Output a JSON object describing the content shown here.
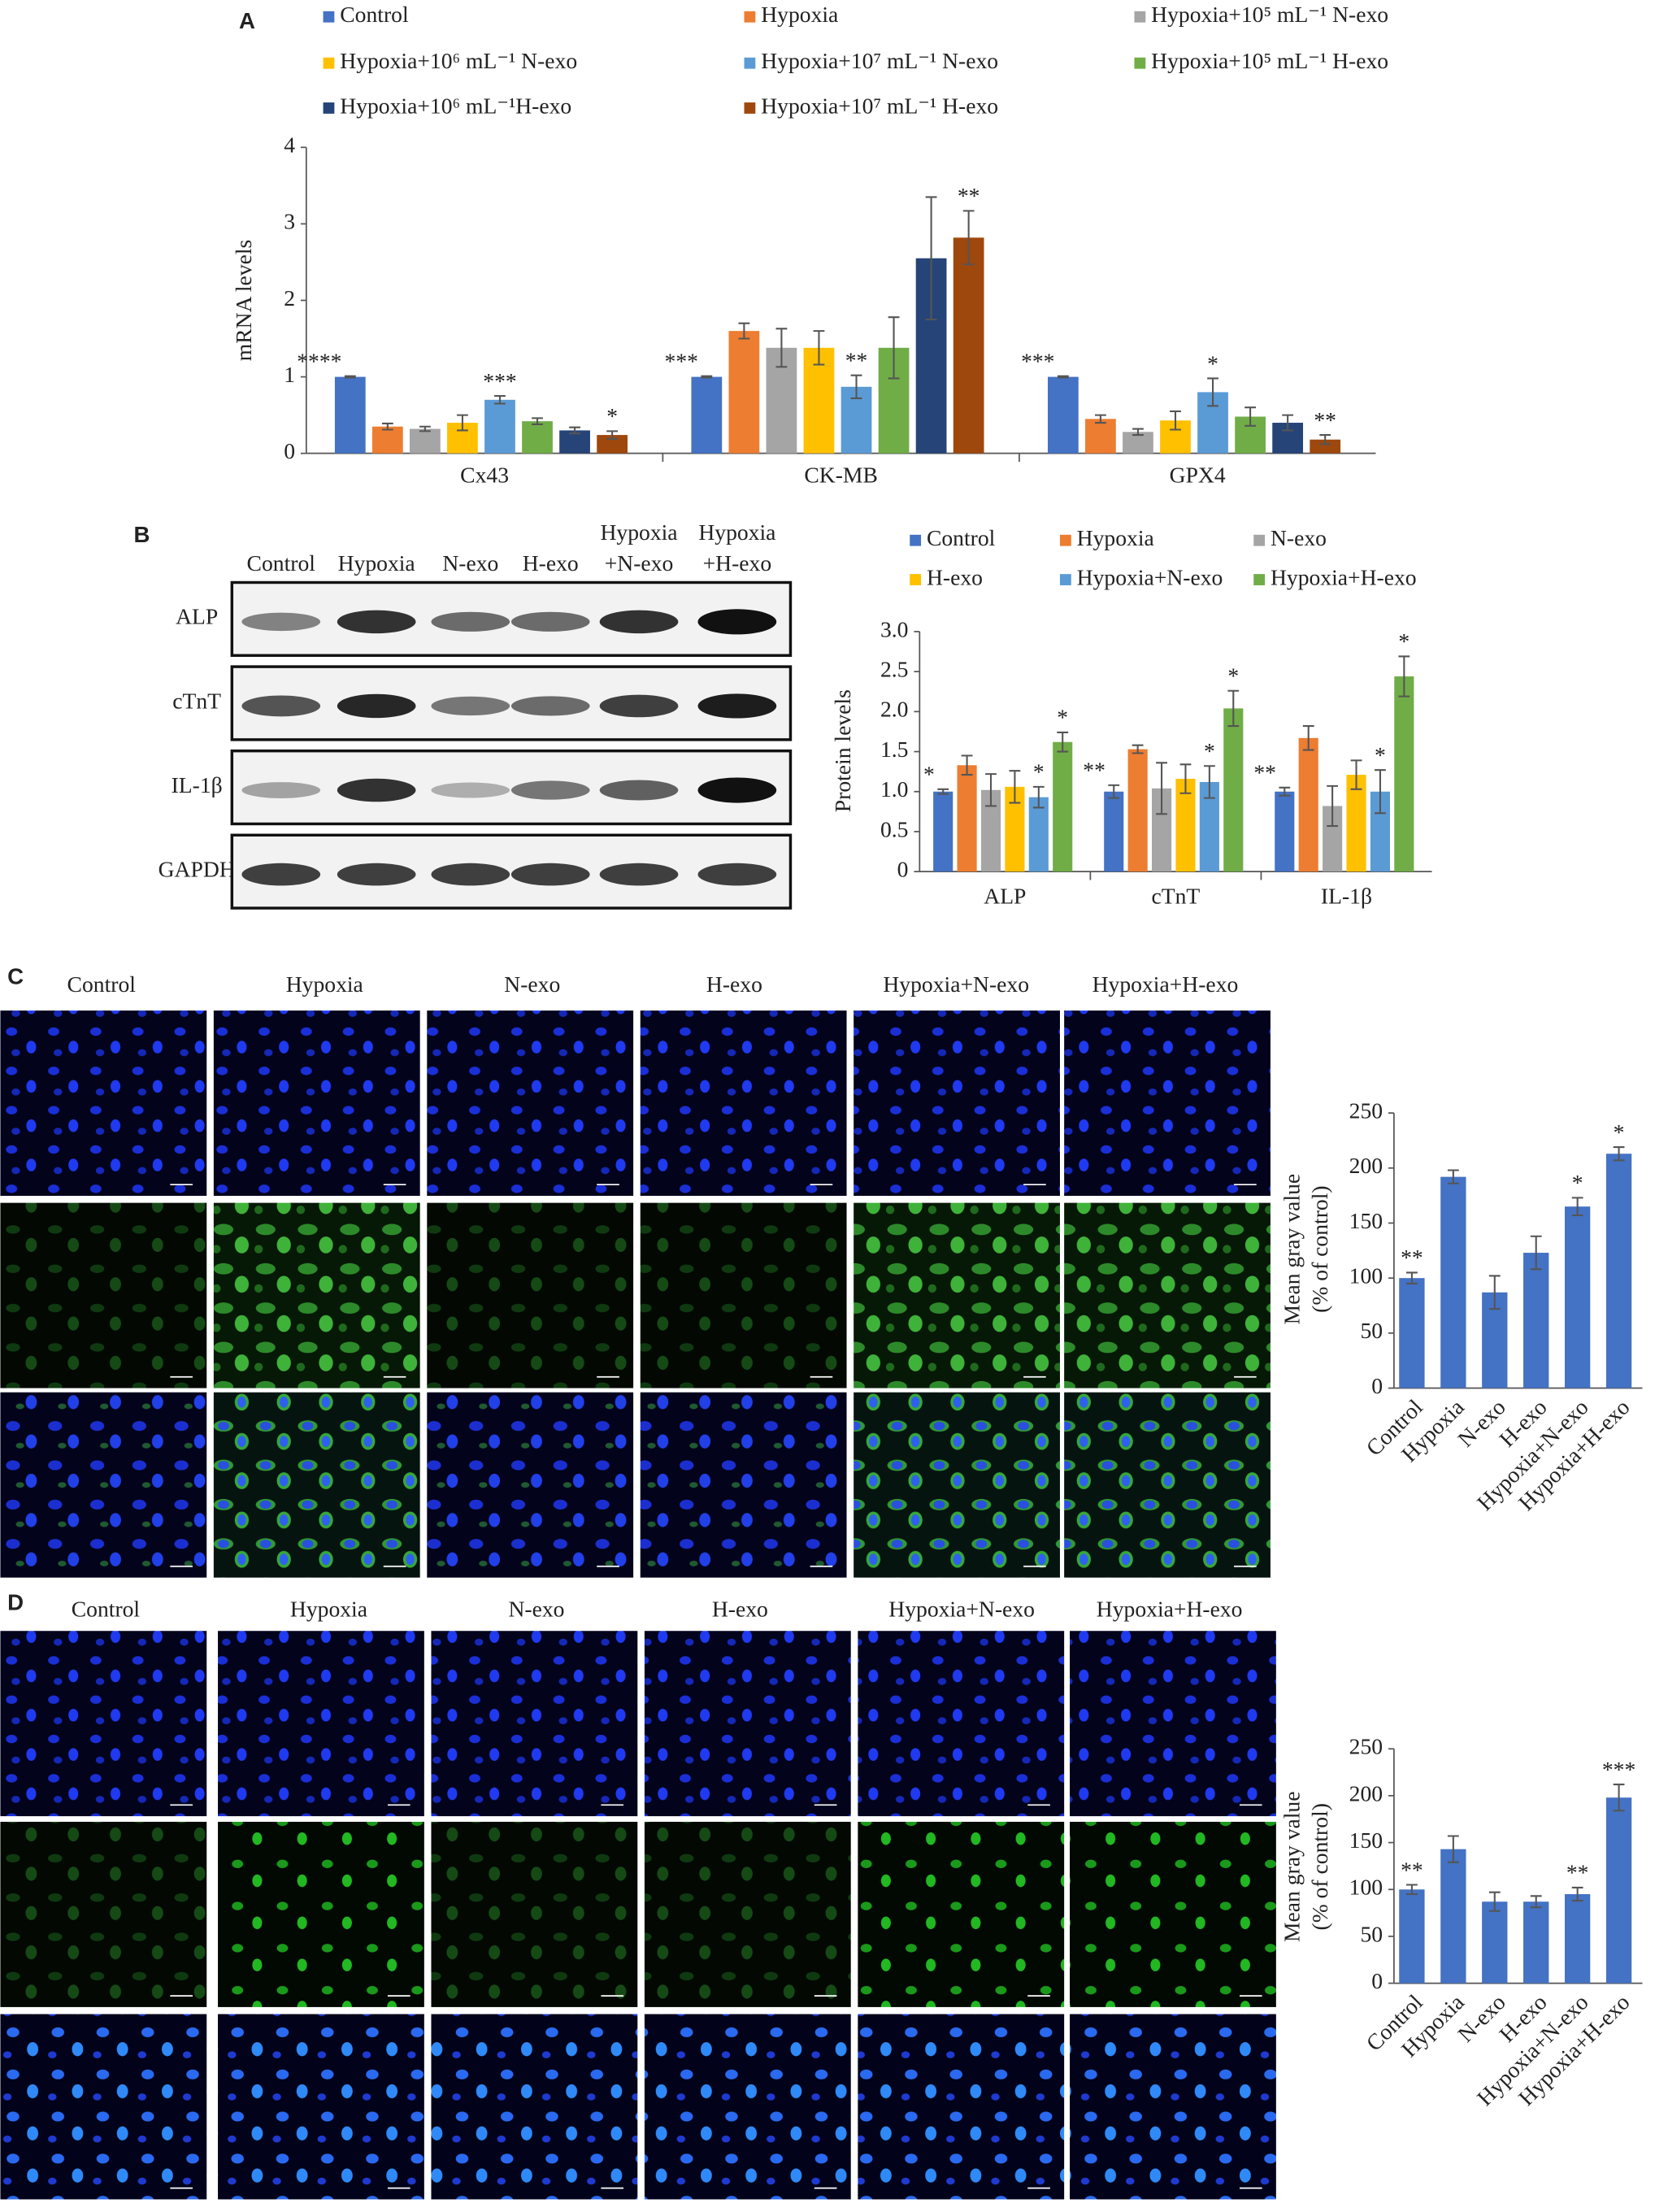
{
  "panel_labels": [
    "A",
    "B",
    "C",
    "D"
  ],
  "blot": {
    "columns": [
      "Control",
      "Hypoxia",
      "N-exo",
      "H-exo",
      [
        "Hypoxia",
        "+N-exo"
      ],
      [
        "Hypoxia",
        "+H-exo"
      ]
    ],
    "rows": [
      "ALP",
      "cTnT",
      "IL-1β",
      "GAPDH"
    ]
  },
  "microscopy": [
    {
      "columns": [
        "Control",
        "Hypoxia",
        "N-exo",
        "H-exo",
        "Hypoxia+N-exo",
        "Hypoxia+H-exo"
      ]
    },
    {
      "columns": [
        "Control",
        "Hypoxia",
        "N-exo",
        "H-exo",
        "Hypoxia+N-exo",
        "Hypoxia+H-exo"
      ]
    }
  ],
  "chart_data": [
    {
      "type": "bar",
      "ylabel": "mRNA levels",
      "categories": [
        "Cx43",
        "CK-MB",
        "GPX4"
      ],
      "ylim": [
        0,
        4
      ],
      "yticks": [
        0,
        1,
        2,
        3,
        4
      ],
      "series": [
        {
          "name": "Control",
          "color": "#4472c4",
          "values": [
            1,
            1,
            1
          ],
          "errors": [
            0.01,
            0.01,
            0.01
          ],
          "significance": [
            "****",
            "***",
            "***"
          ]
        },
        {
          "name": "Hypoxia",
          "color": "#ed7d31",
          "values": [
            0.35,
            1.6,
            0.45
          ],
          "errors": [
            0.04,
            0.1,
            0.05
          ]
        },
        {
          "name": "Hypoxia+10⁵ mL⁻¹ N-exo",
          "color": "#a5a5a5",
          "values": [
            0.32,
            1.38,
            0.28
          ],
          "errors": [
            0.03,
            0.25,
            0.04
          ]
        },
        {
          "name": "Hypoxia+10⁶ mL⁻¹ N-exo",
          "color": "#ffc000",
          "values": [
            0.4,
            1.38,
            0.43
          ],
          "errors": [
            0.1,
            0.22,
            0.12
          ]
        },
        {
          "name": "Hypoxia+10⁷ mL⁻¹ N-exo",
          "color": "#5b9bd5",
          "values": [
            0.7,
            0.87,
            0.8
          ],
          "errors": [
            0.05,
            0.15,
            0.18
          ],
          "significance": [
            "***",
            "**",
            "*"
          ]
        },
        {
          "name": "Hypoxia+10⁵ mL⁻¹ H-exo",
          "color": "#70ad47",
          "values": [
            0.42,
            1.38,
            0.48
          ],
          "errors": [
            0.04,
            0.4,
            0.12
          ]
        },
        {
          "name": "Hypoxia+10⁶ mL⁻¹H-exo",
          "color": "#264478",
          "values": [
            0.3,
            2.55,
            0.4
          ],
          "errors": [
            0.04,
            0.8,
            0.1
          ]
        },
        {
          "name": "Hypoxia+10⁷ mL⁻¹ H-exo",
          "color": "#9e480e",
          "values": [
            0.24,
            2.82,
            0.18
          ],
          "errors": [
            0.05,
            0.35,
            0.06
          ],
          "significance": [
            "*",
            "**",
            "**"
          ]
        }
      ]
    },
    {
      "type": "bar",
      "ylabel": "Protein levels",
      "categories": [
        "ALP",
        "cTnT",
        "IL-1β"
      ],
      "ylim": [
        0,
        3
      ],
      "yticks": [
        0,
        0.5,
        {
          "value": 1,
          "label": "1.0"
        },
        1.5,
        {
          "value": 2,
          "label": "2.0"
        },
        2.5,
        {
          "value": 3,
          "label": "3.0"
        }
      ],
      "series": [
        {
          "name": "Control",
          "color": "#4472c4",
          "values": [
            1.0,
            1.0,
            1.0
          ],
          "errors": [
            0.03,
            0.08,
            0.05
          ],
          "significance": [
            "*",
            "**",
            "**"
          ]
        },
        {
          "name": "Hypoxia",
          "color": "#ed7d31",
          "values": [
            1.33,
            1.53,
            1.67
          ],
          "errors": [
            0.12,
            0.05,
            0.15
          ]
        },
        {
          "name": "N-exo",
          "color": "#a5a5a5",
          "values": [
            1.02,
            1.04,
            0.82
          ],
          "errors": [
            0.2,
            0.32,
            0.25
          ]
        },
        {
          "name": "H-exo",
          "color": "#ffc000",
          "values": [
            1.06,
            1.16,
            1.21
          ],
          "errors": [
            0.2,
            0.18,
            0.18
          ]
        },
        {
          "name": "Hypoxia+N-exo",
          "color": "#5b9bd5",
          "values": [
            0.93,
            1.12,
            1.0
          ],
          "errors": [
            0.13,
            0.2,
            0.27
          ],
          "significance": [
            "*",
            "*",
            "*"
          ]
        },
        {
          "name": "Hypoxia+H-exo",
          "color": "#70ad47",
          "values": [
            1.62,
            2.04,
            2.44
          ],
          "errors": [
            0.12,
            0.22,
            0.25
          ],
          "significance": [
            "*",
            "*",
            "*"
          ]
        }
      ]
    },
    {
      "type": "bar",
      "ylabel": [
        "Mean gray value",
        "(% of control)"
      ],
      "categories": [
        "Control",
        "Hypoxia",
        "N-exo",
        "H-exo",
        "Hypoxia+N-exo",
        "Hypoxia+H-exo"
      ],
      "ylim": [
        0,
        250
      ],
      "yticks": [
        0,
        50,
        100,
        150,
        200,
        250
      ],
      "color": "#4472c4",
      "values": [
        100,
        192,
        87,
        123,
        165,
        213
      ],
      "errors": [
        5,
        6,
        15,
        15,
        8,
        6
      ],
      "significance": [
        "**",
        null,
        null,
        null,
        "*",
        "*"
      ]
    },
    {
      "type": "bar",
      "ylabel": [
        "Mean gray value",
        "(% of control)"
      ],
      "categories": [
        "Control",
        "Hypoxia",
        "N-exo",
        "H-exo",
        "Hypoxia+N-exo",
        "Hypoxia+H-exo"
      ],
      "ylim": [
        0,
        250
      ],
      "yticks": [
        0,
        50,
        100,
        150,
        200,
        250
      ],
      "color": "#4472c4",
      "values": [
        100,
        143,
        87,
        87,
        95,
        198
      ],
      "errors": [
        5,
        14,
        10,
        6,
        7,
        14
      ],
      "significance": [
        "**",
        null,
        null,
        null,
        "**",
        "***"
      ]
    }
  ]
}
